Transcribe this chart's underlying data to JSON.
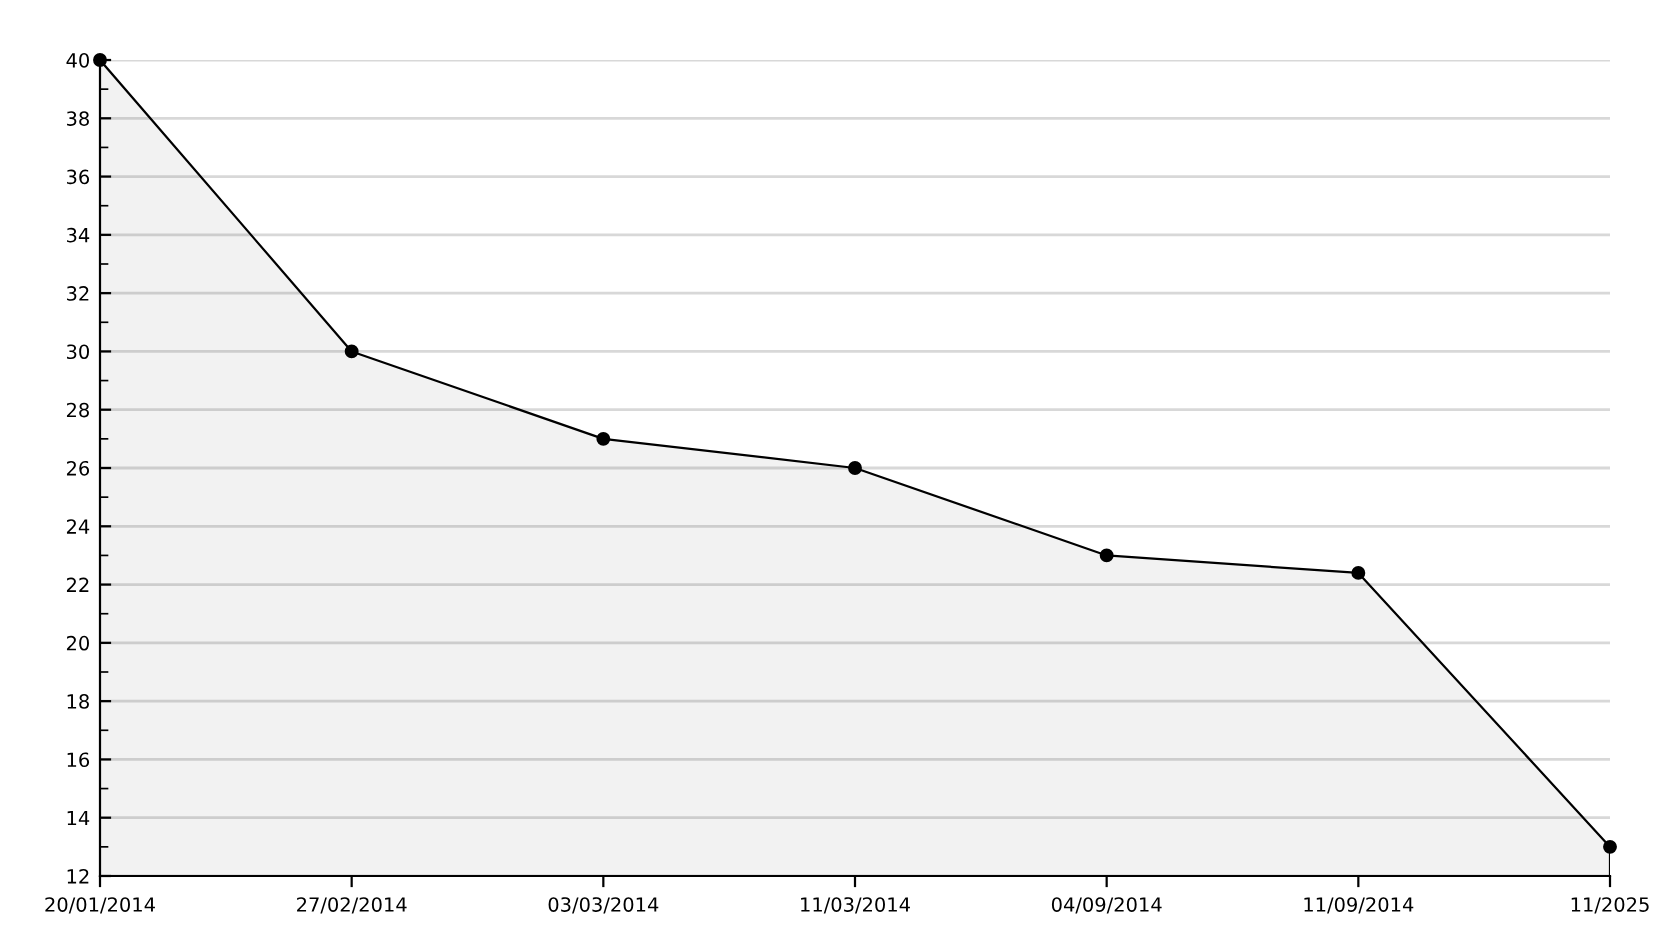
{
  "chart_data": {
    "type": "area",
    "categories": [
      "20/01/2014",
      "27/02/2014",
      "03/03/2014",
      "11/03/2014",
      "04/09/2014",
      "11/09/2014",
      "11/2025"
    ],
    "series": [
      {
        "color": "#000000",
        "values": [
          40,
          30,
          27,
          26,
          23,
          22.4,
          13
        ]
      }
    ],
    "ylim": [
      12,
      40
    ],
    "yticks": [
      12,
      14,
      16,
      18,
      20,
      22,
      24,
      26,
      28,
      30,
      32,
      34,
      36,
      38,
      40
    ],
    "grid": "y",
    "marker": "circle",
    "line_style": "solid",
    "legend": false
  }
}
